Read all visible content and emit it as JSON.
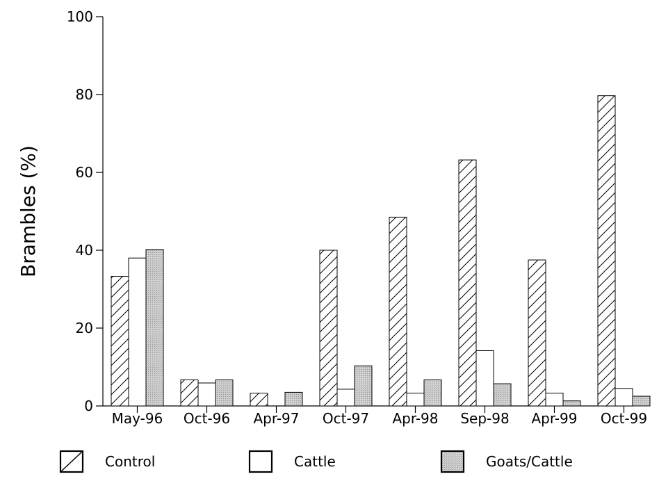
{
  "chart_data": {
    "type": "bar",
    "title": "",
    "xlabel": "",
    "ylabel": "Brambles (%)",
    "ylim": [
      0,
      100
    ],
    "yticks": [
      0,
      20,
      40,
      60,
      80,
      100
    ],
    "categories": [
      "May-96",
      "Oct-96",
      "Apr-97",
      "Oct-97",
      "Apr-98",
      "Sep-98",
      "Apr-99",
      "Oct-99"
    ],
    "series": [
      {
        "name": "Control",
        "fill": "hatch",
        "values": [
          33.3,
          6.7,
          3.3,
          40,
          48.5,
          63.2,
          37.5,
          79.7
        ]
      },
      {
        "name": "Cattle",
        "fill": "white",
        "values": [
          38,
          5.9,
          0,
          4.3,
          3.3,
          14.2,
          3.3,
          4.5
        ]
      },
      {
        "name": "Goats/Cattle",
        "fill": "stipple",
        "values": [
          40.2,
          6.7,
          3.5,
          10.3,
          6.7,
          5.7,
          1.3,
          2.5
        ]
      }
    ],
    "grid": false,
    "legend_position": "bottom"
  },
  "colors": {
    "stroke": "#000000",
    "hatch": "#000000",
    "stipple": "#c8c8c8",
    "background": "#ffffff"
  }
}
